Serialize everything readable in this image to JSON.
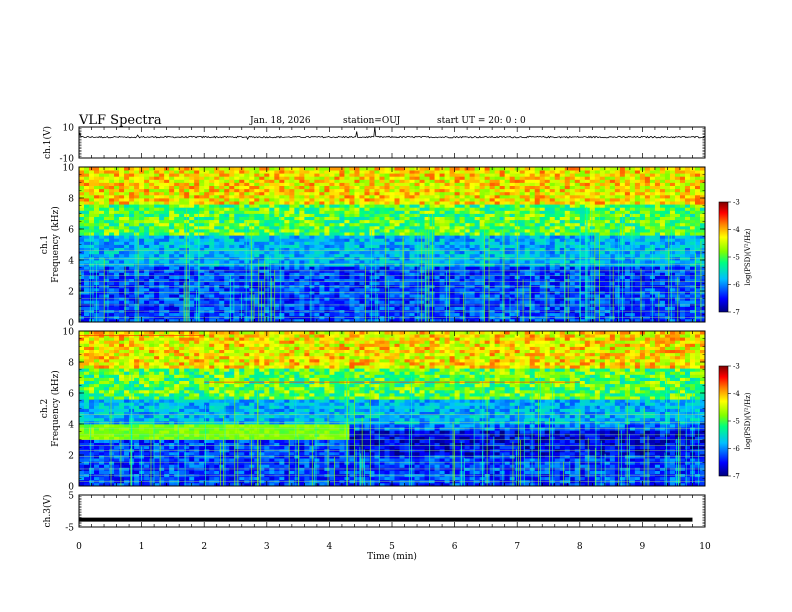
{
  "header": {
    "title": "VLF Spectra",
    "date": "Jan. 18, 2026",
    "station": "station=OUJ",
    "start_label": "start  UT =  20: 0  : 0"
  },
  "chart_data": [
    {
      "type": "line",
      "ylabel": "ch.1(V)",
      "ylim": [
        -10,
        10
      ],
      "y_tick_labels": [
        "10",
        "-10"
      ],
      "description_values": {
        "baseline": 3.5,
        "noise_amplitude": 1.0
      }
    },
    {
      "type": "heatmap",
      "ylabel_line1": "ch.1",
      "ylabel_line2": "Frequency (kHz)",
      "ylim": [
        0,
        10
      ],
      "y_tick_labels": [
        "0",
        "2",
        "4",
        "6",
        "8",
        "10"
      ],
      "colorbar": {
        "label": "log(PSD)(V²/Hz)",
        "range": [
          -7,
          -3
        ],
        "tick_labels": [
          "-3",
          "-4",
          "-5",
          "-6",
          "-7"
        ],
        "colors": [
          "#00007f",
          "#0000ff",
          "#00bfff",
          "#00ff7f",
          "#7fff00",
          "#ffff00",
          "#ff7f00",
          "#ff0000",
          "#7f0000"
        ]
      }
    },
    {
      "type": "heatmap",
      "ylabel_line1": "ch.2",
      "ylabel_line2": "Frequency (kHz)",
      "ylim": [
        0,
        10
      ],
      "y_tick_labels": [
        "0",
        "2",
        "4",
        "6",
        "8",
        "10"
      ],
      "colorbar": {
        "label": "log(PSD)(V²/Hz)",
        "range": [
          -7,
          -3
        ],
        "tick_labels": [
          "-3",
          "-4",
          "-5",
          "-6",
          "-7"
        ],
        "colors": [
          "#00007f",
          "#0000ff",
          "#00bfff",
          "#00ff7f",
          "#7fff00",
          "#ffff00",
          "#ff7f00",
          "#ff0000",
          "#7f0000"
        ]
      }
    },
    {
      "type": "line",
      "ylabel": "ch.3(V)",
      "ylim": [
        -5,
        5
      ],
      "y_tick_labels": [
        "5",
        "-5"
      ],
      "description_values": {
        "baseline": -2.7
      }
    }
  ],
  "x_axis": {
    "label": "Time (min)",
    "range": [
      0,
      10
    ],
    "tick_labels": [
      "0",
      "1",
      "2",
      "3",
      "4",
      "5",
      "6",
      "7",
      "8",
      "9",
      "10"
    ]
  }
}
